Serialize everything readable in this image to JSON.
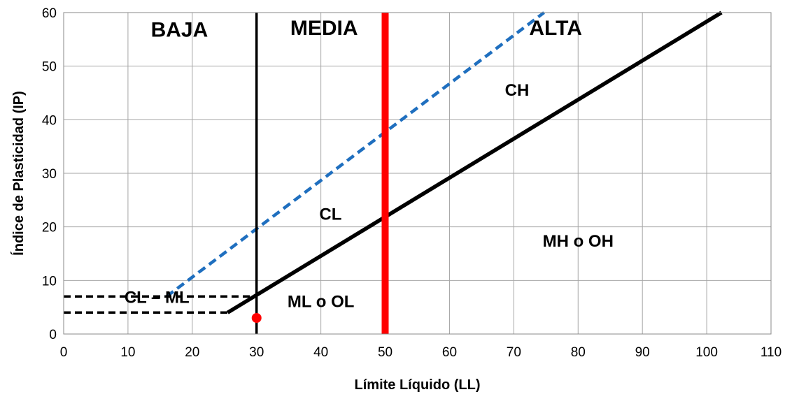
{
  "chart_data": {
    "type": "line",
    "title": "",
    "xlabel": "Límite Líquido (LL)",
    "ylabel": "Índice de Plasticidad (IP)",
    "xlim": [
      0,
      110
    ],
    "ylim": [
      0,
      60
    ],
    "x_ticks": [
      0,
      10,
      20,
      30,
      40,
      50,
      60,
      70,
      80,
      90,
      100,
      110
    ],
    "y_ticks": [
      0,
      10,
      20,
      30,
      40,
      50,
      60
    ],
    "grid": true,
    "series": [
      {
        "key": "a_line",
        "style": "solid",
        "color": "#000000",
        "points": [
          [
            25.5,
            4
          ],
          [
            102.3,
            60
          ]
        ]
      },
      {
        "key": "u_line",
        "style": "dashed",
        "color": "#1f6fbf",
        "points": [
          [
            16,
            7
          ],
          [
            74.7,
            60
          ]
        ]
      },
      {
        "key": "ll_30",
        "style": "solid",
        "color": "#000000",
        "points": [
          [
            30,
            0
          ],
          [
            30,
            60
          ]
        ]
      },
      {
        "key": "ll_50",
        "style": "solid",
        "color": "#ff0000",
        "points": [
          [
            50,
            0
          ],
          [
            50,
            60
          ]
        ]
      },
      {
        "key": "ip_7",
        "style": "dashed",
        "color": "#000000",
        "points": [
          [
            0,
            7
          ],
          [
            30,
            7
          ]
        ]
      },
      {
        "key": "ip_4",
        "style": "dashed",
        "color": "#000000",
        "points": [
          [
            0,
            4
          ],
          [
            25.5,
            4
          ]
        ]
      }
    ],
    "points": [
      {
        "x": 30,
        "y": 3,
        "color": "#ff0000"
      }
    ],
    "annotations": [
      {
        "text": "BAJA",
        "x": 18,
        "y": 55.5,
        "size": 30
      },
      {
        "text": "MEDIA",
        "x": 40.5,
        "y": 55.8,
        "size": 30
      },
      {
        "text": "ALTA",
        "x": 76.5,
        "y": 55.8,
        "size": 30
      },
      {
        "text": "CH",
        "x": 70.5,
        "y": 44.5,
        "size": 24
      },
      {
        "text": "CL",
        "x": 41.5,
        "y": 21.3,
        "size": 24
      },
      {
        "text": "MH  o OH",
        "x": 80,
        "y": 16.3,
        "size": 24
      },
      {
        "text": "ML  o  OL",
        "x": 40,
        "y": 5,
        "size": 24
      },
      {
        "text": "CL – ML",
        "x": 14.5,
        "y": 5.8,
        "size": 24
      }
    ]
  }
}
